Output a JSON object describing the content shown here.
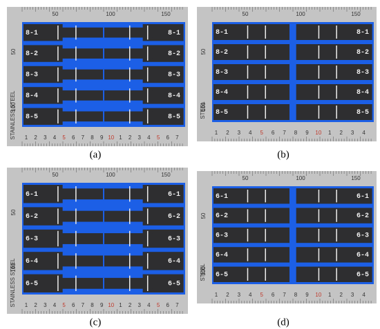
{
  "panels": [
    {
      "caption": "(a)",
      "specimens": [
        "8-1",
        "8-2",
        "8-3",
        "8-4",
        "8-5"
      ],
      "top_ruler": [
        "50",
        "100",
        "150"
      ],
      "side_ruler": [
        "50",
        "100"
      ],
      "bottom_ruler": [
        "1",
        "2",
        "3",
        "4",
        "5",
        "6",
        "7",
        "8",
        "9",
        "10",
        "1",
        "2",
        "3",
        "4",
        "5",
        "6",
        "7"
      ],
      "side_text": "STAINLESS STEEL"
    },
    {
      "caption": "(b)",
      "specimens": [
        "8-1",
        "8-2",
        "8-3",
        "8-4",
        "8-5"
      ],
      "top_ruler": [
        "50",
        "100",
        "150"
      ],
      "side_ruler": [
        "50",
        "100"
      ],
      "bottom_ruler": [
        "1",
        "2",
        "3",
        "4",
        "5",
        "6",
        "7",
        "8",
        "9",
        "10",
        "1",
        "2",
        "3",
        "4"
      ],
      "side_text": "STEEL"
    },
    {
      "caption": "(c)",
      "specimens": [
        "6-1",
        "6-2",
        "6-3",
        "6-4",
        "6-5"
      ],
      "top_ruler": [
        "50",
        "100",
        "150"
      ],
      "side_ruler": [
        "50",
        "100"
      ],
      "bottom_ruler": [
        "1",
        "2",
        "3",
        "4",
        "5",
        "6",
        "7",
        "8",
        "9",
        "10",
        "1",
        "2",
        "3",
        "4",
        "5",
        "6",
        "7"
      ],
      "side_text": "STAINLESS STEEL"
    },
    {
      "caption": "(d)",
      "specimens": [
        "6-1",
        "6-2",
        "6-3",
        "6-4",
        "6-5"
      ],
      "top_ruler": [
        "50",
        "100",
        "150"
      ],
      "side_ruler": [
        "50",
        "100"
      ],
      "bottom_ruler": [
        "1",
        "2",
        "3",
        "4",
        "5",
        "6",
        "7",
        "8",
        "9",
        "10",
        "1",
        "2",
        "3",
        "4"
      ],
      "side_text": "STEEL"
    }
  ]
}
